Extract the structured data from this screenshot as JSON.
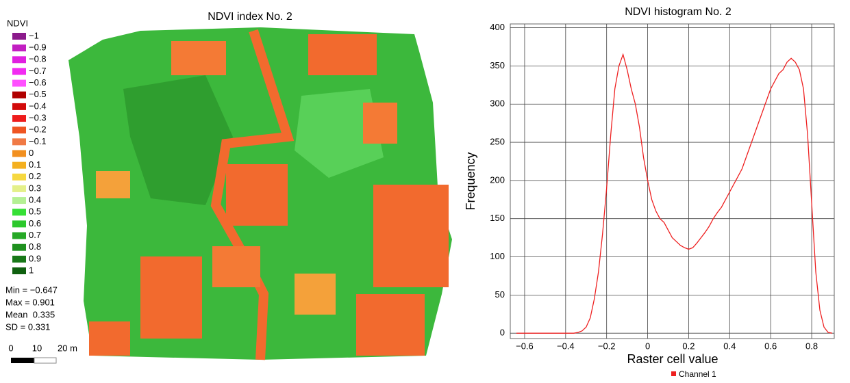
{
  "map": {
    "title": "NDVI index No. 2",
    "legend": {
      "title": "NDVI",
      "items": [
        {
          "label": "−1",
          "color": "#8b1a8b"
        },
        {
          "label": "−0.9",
          "color": "#c21fc2"
        },
        {
          "label": "−0.8",
          "color": "#e020e0"
        },
        {
          "label": "−0.7",
          "color": "#f22af2"
        },
        {
          "label": "−0.6",
          "color": "#ff50ff"
        },
        {
          "label": "−0.5",
          "color": "#b00000"
        },
        {
          "label": "−0.4",
          "color": "#d20a0a"
        },
        {
          "label": "−0.3",
          "color": "#ee1c1c"
        },
        {
          "label": "−0.2",
          "color": "#ef5522"
        },
        {
          "label": "−0.1",
          "color": "#f07a45"
        },
        {
          "label": "0",
          "color": "#f29020"
        },
        {
          "label": "0.1",
          "color": "#f4b020"
        },
        {
          "label": "0.2",
          "color": "#f6d840"
        },
        {
          "label": "0.3",
          "color": "#e4f08a"
        },
        {
          "label": "0.4",
          "color": "#b4f094"
        },
        {
          "label": "0.5",
          "color": "#36e036"
        },
        {
          "label": "0.6",
          "color": "#2cc82c"
        },
        {
          "label": "0.7",
          "color": "#26a826"
        },
        {
          "label": "0.8",
          "color": "#1e901e"
        },
        {
          "label": "0.9",
          "color": "#187818"
        },
        {
          "label": "1",
          "color": "#0f600f"
        }
      ]
    },
    "stats": [
      "Min = −0.647",
      "Max = 0.901",
      "Mean  0.335",
      "SD = 0.331"
    ],
    "scale": [
      "0",
      "10",
      "20 m"
    ]
  },
  "chart_data": {
    "type": "line",
    "title": "NDVI histogram No. 2",
    "x_label": "Raster cell value",
    "y_label": "Frequency",
    "x": [
      -0.64,
      -0.62,
      -0.6,
      -0.58,
      -0.56,
      -0.54,
      -0.52,
      -0.5,
      -0.48,
      -0.46,
      -0.44,
      -0.42,
      -0.4,
      -0.38,
      -0.36,
      -0.34,
      -0.32,
      -0.3,
      -0.28,
      -0.26,
      -0.24,
      -0.22,
      -0.2,
      -0.18,
      -0.16,
      -0.14,
      -0.12,
      -0.1,
      -0.08,
      -0.06,
      -0.04,
      -0.02,
      0,
      0.02,
      0.04,
      0.06,
      0.08,
      0.1,
      0.12,
      0.14,
      0.16,
      0.18,
      0.2,
      0.22,
      0.24,
      0.26,
      0.28,
      0.3,
      0.32,
      0.34,
      0.36,
      0.38,
      0.4,
      0.42,
      0.44,
      0.46,
      0.48,
      0.5,
      0.52,
      0.54,
      0.56,
      0.58,
      0.6,
      0.62,
      0.64,
      0.66,
      0.68,
      0.7,
      0.72,
      0.74,
      0.76,
      0.78,
      0.8,
      0.82,
      0.84,
      0.86,
      0.88,
      0.9
    ],
    "series": [
      {
        "name": "Channel 1",
        "color": "#ee2020",
        "values": [
          0,
          0,
          0,
          0,
          0,
          0,
          0,
          0,
          0,
          0,
          0,
          0,
          0,
          0,
          0,
          1,
          3,
          8,
          20,
          45,
          80,
          130,
          190,
          260,
          320,
          350,
          365,
          345,
          320,
          300,
          270,
          230,
          200,
          175,
          160,
          150,
          145,
          135,
          125,
          120,
          115,
          112,
          110,
          112,
          118,
          125,
          132,
          140,
          150,
          158,
          165,
          175,
          185,
          195,
          205,
          215,
          230,
          245,
          260,
          275,
          290,
          305,
          320,
          330,
          340,
          345,
          355,
          360,
          355,
          345,
          320,
          260,
          170,
          80,
          30,
          8,
          1,
          0
        ]
      }
    ],
    "xlim": [
      -0.67,
      0.91
    ],
    "ylim": [
      -7,
      405
    ],
    "xticks": [
      {
        "value": -0.6,
        "label": "−0.6"
      },
      {
        "value": -0.4,
        "label": "−0.4"
      },
      {
        "value": -0.2,
        "label": "−0.2"
      },
      0,
      0.2,
      0.4,
      0.6,
      0.8
    ],
    "yticks": [
      0,
      50,
      100,
      150,
      200,
      250,
      300,
      350,
      400
    ],
    "grid": true,
    "legend": "bottom"
  }
}
